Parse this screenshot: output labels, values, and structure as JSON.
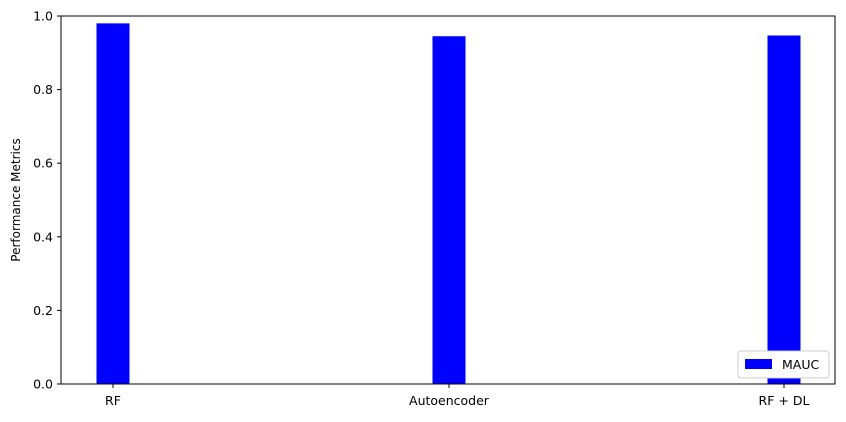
{
  "chart_data": {
    "type": "bar",
    "categories": [
      "RF",
      "Autoencoder",
      "RF + DL"
    ],
    "series": [
      {
        "name": "MAUC",
        "values": [
          0.98,
          0.945,
          0.947
        ],
        "color": "#0000ff"
      }
    ],
    "title": "",
    "xlabel": "",
    "ylabel": "Performance Metrics",
    "ylim": [
      0,
      1.0
    ],
    "yticks": [
      0,
      0.2,
      0.4,
      0.6,
      0.8,
      1.0
    ],
    "ytick_labels": [
      "0.0",
      "0.2",
      "0.4",
      "0.6",
      "0.8",
      "1.0"
    ],
    "grid": false,
    "legend_position": "lower-right"
  }
}
